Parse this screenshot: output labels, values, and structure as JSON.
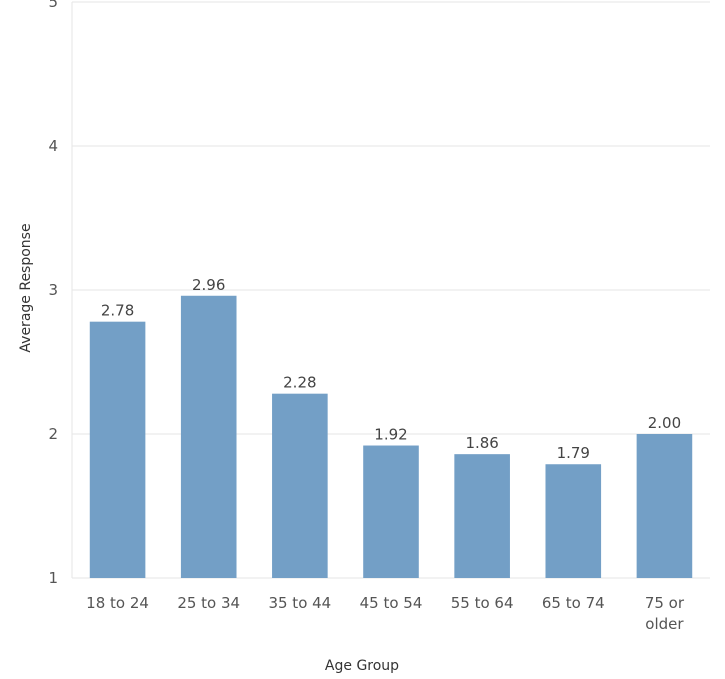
{
  "chart_data": {
    "type": "bar",
    "title": "",
    "xlabel": "Age Group",
    "ylabel": "Average Response",
    "ylim": [
      1,
      5
    ],
    "yticks": [
      1,
      2,
      3,
      4,
      5
    ],
    "grid": true,
    "categories": [
      [
        "18 to 24"
      ],
      [
        "25 to 34"
      ],
      [
        "35 to 44"
      ],
      [
        "45 to 54"
      ],
      [
        "55 to 64"
      ],
      [
        "65 to 74"
      ],
      [
        "75 or",
        "older"
      ]
    ],
    "values": [
      2.78,
      2.96,
      2.28,
      1.92,
      1.86,
      1.79,
      2.0
    ],
    "value_labels": [
      "2.78",
      "2.96",
      "2.28",
      "1.92",
      "1.86",
      "1.79",
      "2.00"
    ],
    "bar_color": "#739fc6",
    "grid_color": "#e6e6e6"
  }
}
